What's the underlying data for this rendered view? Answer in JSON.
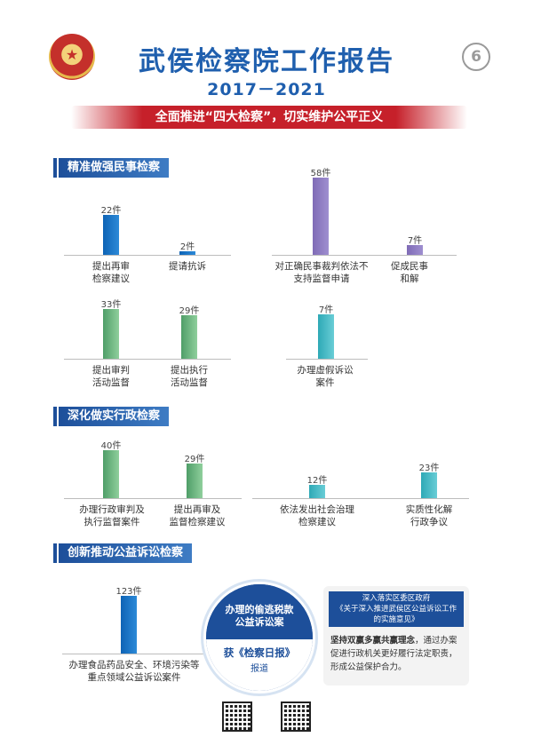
{
  "header": {
    "title": "武侯检察院工作报告",
    "years": "2017－2021",
    "page_number": "6",
    "banner": "全面推进“四大检察”，切实维护公平正义"
  },
  "sections": {
    "civil": "精准做强民事检察",
    "admin": "深化做实行政检察",
    "public": "创新推动公益诉讼检察"
  },
  "chart_data": [
    {
      "type": "bar",
      "series_color": "#0d63b5",
      "categories": [
        "提出再审检察建议",
        "提请抗诉"
      ],
      "values": [
        22,
        2
      ],
      "data_labels": [
        "22件",
        "2件"
      ]
    },
    {
      "type": "bar",
      "series_color": "#7f6bb6",
      "categories": [
        "对正确民事裁判依法不支持监督申请",
        "促成民事和解"
      ],
      "values": [
        58,
        7
      ],
      "data_labels": [
        "58件",
        "7件"
      ]
    },
    {
      "type": "bar",
      "series_color": "#4f9e68",
      "categories": [
        "提出审判活动监督",
        "提出执行活动监督"
      ],
      "values": [
        33,
        29
      ],
      "data_labels": [
        "33件",
        "29件"
      ]
    },
    {
      "type": "bar",
      "series_color": "#2ea9b6",
      "categories": [
        "办理虚假诉讼案件"
      ],
      "values": [
        7
      ],
      "data_labels": [
        "7件"
      ]
    },
    {
      "type": "bar",
      "series_color": "#4f9e68",
      "categories": [
        "办理行政审判及执行监督案件",
        "提出再审及监督检察建议"
      ],
      "values": [
        40,
        29
      ],
      "data_labels": [
        "40件",
        "29件"
      ]
    },
    {
      "type": "bar",
      "series_color": "#2ea9b6",
      "categories": [
        "依法发出社会治理检察建议",
        "实质性化解行政争议"
      ],
      "values": [
        12,
        23
      ],
      "data_labels": [
        "12件",
        "23件"
      ]
    },
    {
      "type": "bar",
      "series_color": "#0d63b5",
      "categories": [
        "办理食品药品安全、环境污染等重点领域公益诉讼案件"
      ],
      "values": [
        123
      ],
      "data_labels": [
        "123件"
      ]
    }
  ],
  "labels": {
    "c1a": [
      "提出再审",
      "检察建议"
    ],
    "c1b": [
      "提请抗诉"
    ],
    "c2a": [
      "对正确民事裁判依法不",
      "支持监督申请"
    ],
    "c2b": [
      "促成民事",
      "和解"
    ],
    "c3a": [
      "提出审判",
      "活动监督"
    ],
    "c3b": [
      "提出执行",
      "活动监督"
    ],
    "c4a": [
      "办理虚假诉讼",
      "案件"
    ],
    "c5a": [
      "办理行政审判及",
      "执行监督案件"
    ],
    "c5b": [
      "提出再审及",
      "监督检察建议"
    ],
    "c6a": [
      "依法发出社会治理",
      "检察建议"
    ],
    "c6b": [
      "实质性化解",
      "行政争议"
    ],
    "c7a": [
      "办理食品药品安全、环境污染等",
      "重点领域公益诉讼案件"
    ]
  },
  "highlight": {
    "line1": "办理的偷逃税款",
    "line2": "公益诉讼案",
    "line3": "获《检察日报》",
    "line4": "报道"
  },
  "note": {
    "head1": "深入落实区委区政府",
    "head2": "《关于深入推进武侯区公益诉讼工作",
    "head3": "的实施意见》",
    "body_bold": "坚持双赢多赢共赢理念",
    "body": "，通过办案促进行政机关更好履行法定职责，形成公益保护合力。"
  }
}
